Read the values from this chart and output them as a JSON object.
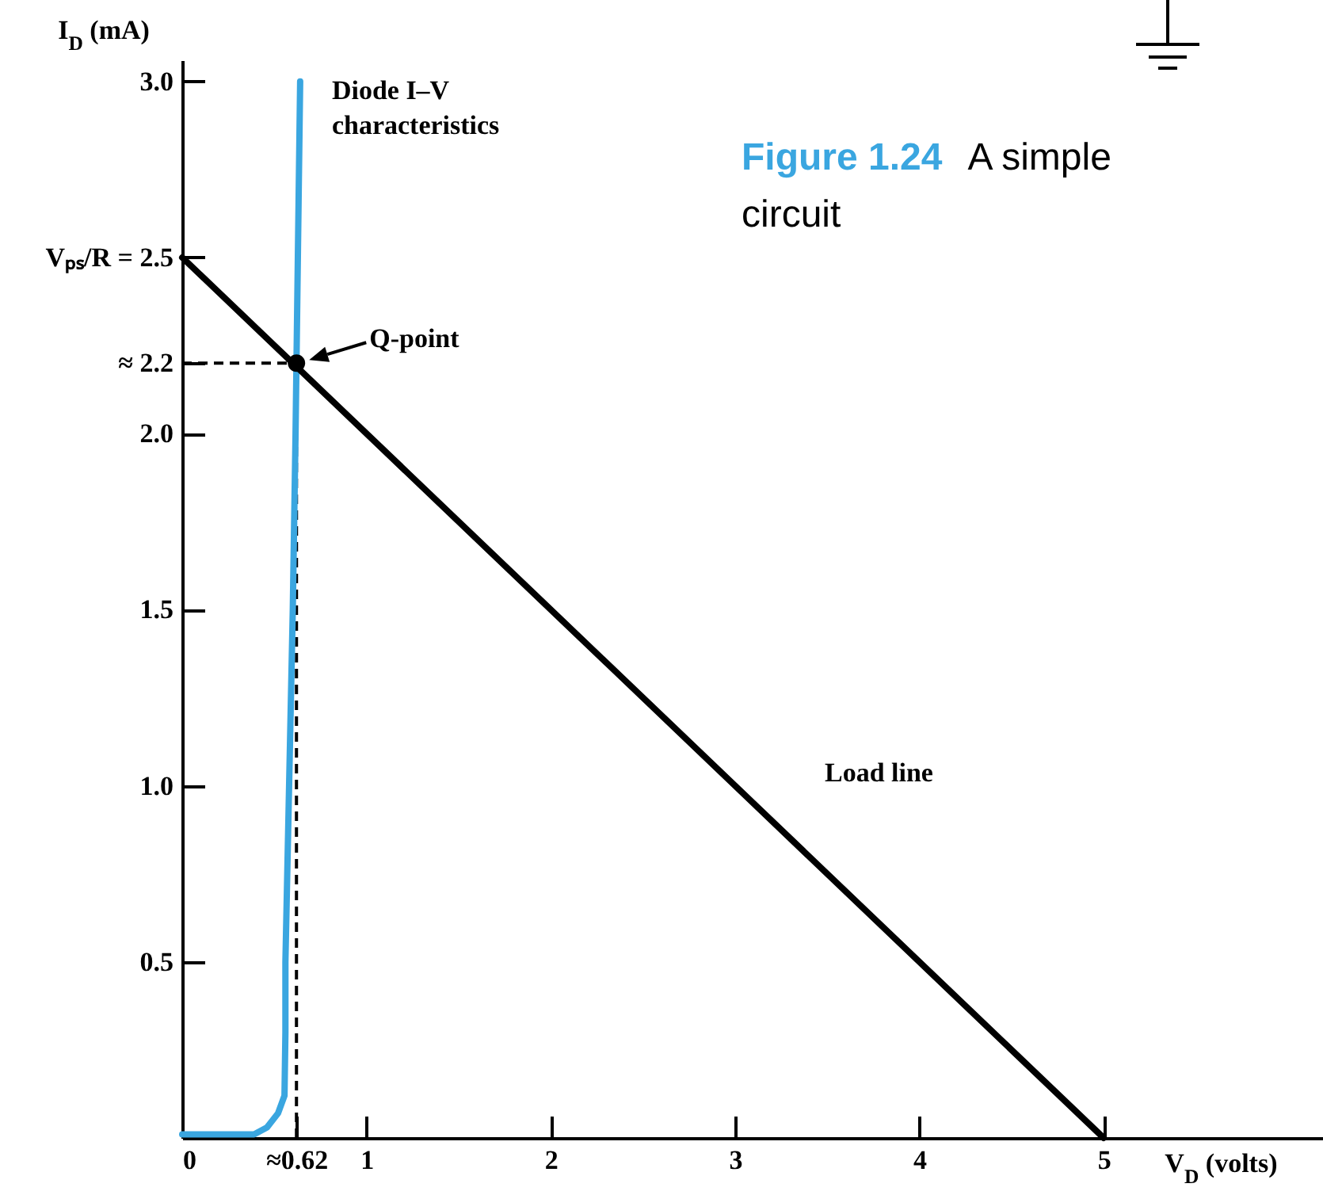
{
  "chart_data": {
    "type": "line",
    "xlabel": "V$_{D}$ (volts)",
    "ylabel": "I$_{D}$ (mA)",
    "xlim": [
      0,
      6.19
    ],
    "ylim": [
      0,
      3.06
    ],
    "xticks": [
      0,
      {
        "value": 0.62,
        "label": "≈0.62"
      },
      1,
      2,
      3,
      4,
      5
    ],
    "yticks": [
      {
        "value": 0.5,
        "label": "0.5"
      },
      {
        "value": 1,
        "label": "1.0"
      },
      {
        "value": 1.5,
        "label": "1.5"
      },
      {
        "value": 2,
        "label": "2.0"
      },
      {
        "value": 2.2,
        "label": "≈ 2.2"
      },
      {
        "value": 2.5,
        "label": "Vₚₛ/R = 2.5"
      },
      {
        "value": 3,
        "label": "3.0"
      }
    ],
    "grid": false,
    "series": [
      {
        "name": "Diode I–V characteristics",
        "type": "line",
        "color": "#3aa6e0",
        "x": [
          0,
          0.39,
          0.46,
          0.52,
          0.555,
          0.56,
          0.56,
          0.58,
          0.6,
          0.615,
          0.62,
          0.64
        ],
        "values": [
          0.01,
          0.01,
          0.03,
          0.07,
          0.12,
          0.3,
          0.5,
          1.0,
          1.5,
          2.0,
          2.2,
          3.0
        ]
      },
      {
        "name": "Load line",
        "type": "line",
        "color": "#000000",
        "x": [
          0,
          5
        ],
        "values": [
          2.5,
          0
        ]
      },
      {
        "type": "scatter",
        "color": "#000000",
        "x": [
          0.62
        ],
        "values": [
          2.2
        ]
      }
    ],
    "ref_lines": [
      {
        "axis": "x",
        "value": 0.62,
        "color": "#000000",
        "line_style": "dashed"
      },
      {
        "axis": "y",
        "value": 2.2,
        "color": "#000000",
        "line_style": "dashed"
      }
    ],
    "annotations": [
      {
        "text": "Q-point",
        "x": 0.62,
        "y": 2.2
      },
      "Figure 1.24",
      "A simple",
      "circuit"
    ]
  }
}
